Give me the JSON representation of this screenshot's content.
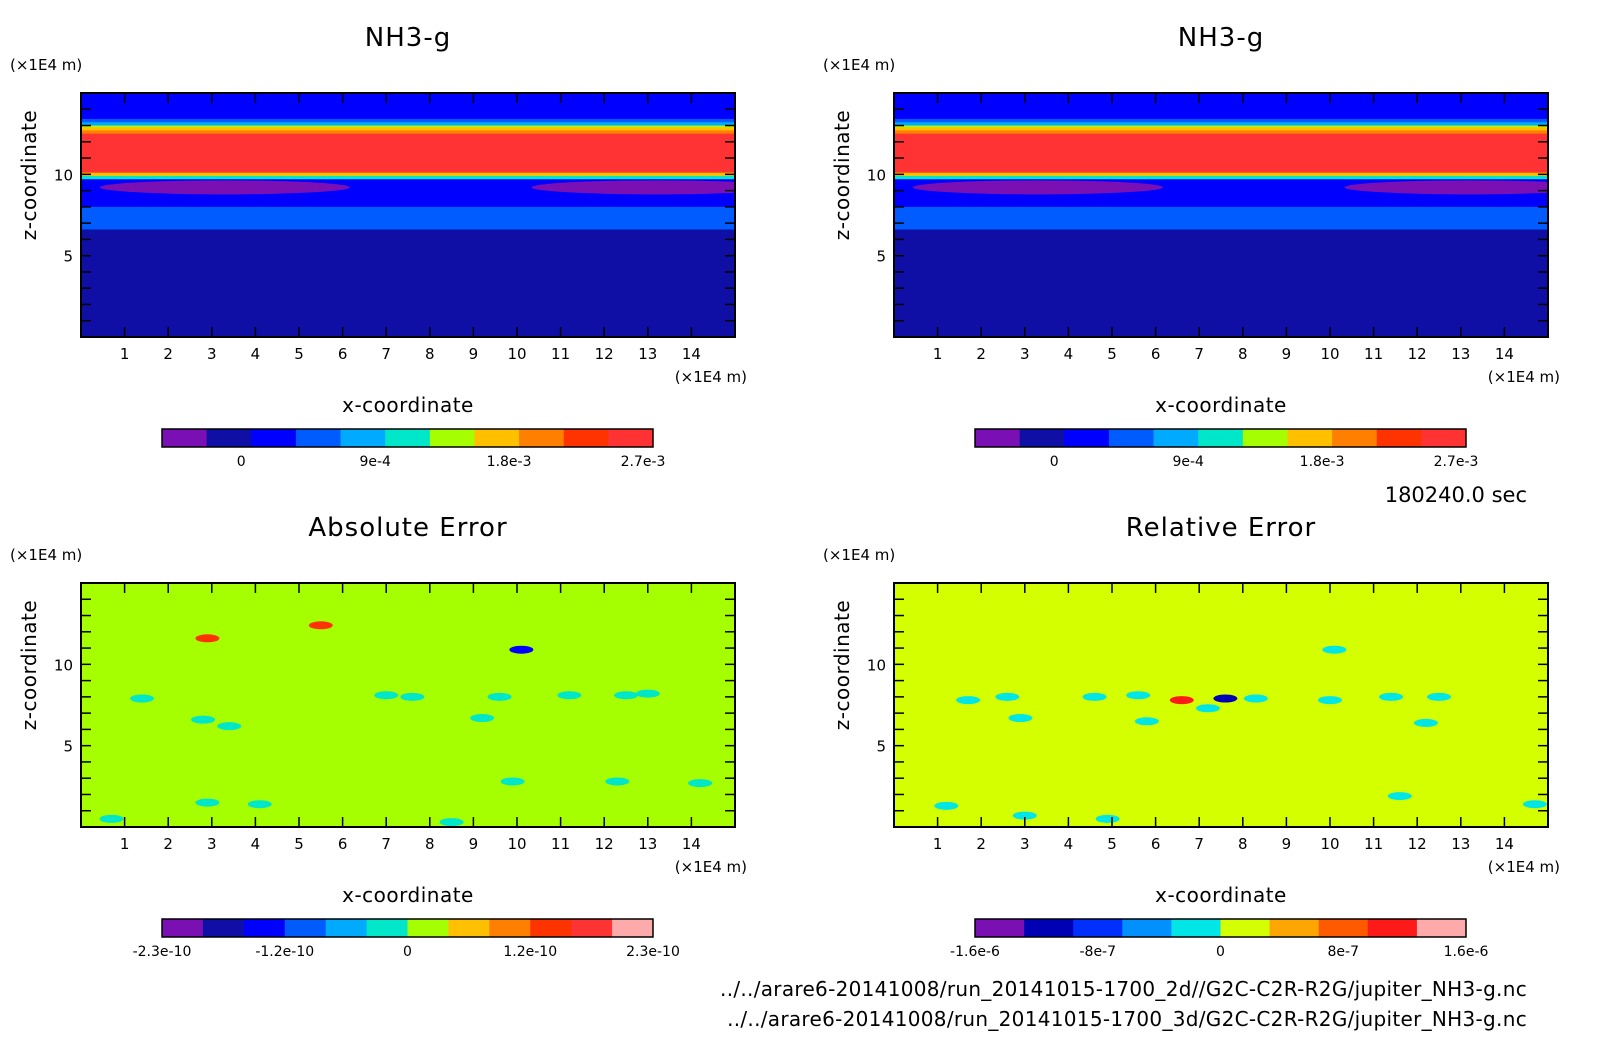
{
  "chart_data": [
    {
      "id": "nh3_2d",
      "type": "heatmap",
      "title": "NH3-g",
      "xlabel": "x-coordinate",
      "ylabel": "z-coordinate",
      "x_unit": "(×1E4 m)",
      "y_unit": "(×1E4 m)",
      "xlim": [
        0,
        15
      ],
      "ylim": [
        0,
        15
      ],
      "x_ticks": [
        "1",
        "2",
        "3",
        "4",
        "5",
        "6",
        "7",
        "8",
        "9",
        "10",
        "11",
        "12",
        "13",
        "14"
      ],
      "y_ticks": [
        "5",
        "10"
      ],
      "colorbar_ticks": [
        "0",
        "9e-4",
        "1.8e-3",
        "2.7e-3"
      ],
      "colorbar_colors": [
        "#7a0fb4",
        "#0f0fa5",
        "#0000ff",
        "#005cff",
        "#00aaff",
        "#00e6c8",
        "#a6ff00",
        "#ffc000",
        "#ff8000",
        "#ff3300",
        "#ff3333"
      ],
      "layers": [
        {
          "z_top": 15.0,
          "color": "#0000ff"
        },
        {
          "z_top": 13.4,
          "color": "#005cff"
        },
        {
          "z_top": 13.2,
          "color": "#00aaff"
        },
        {
          "z_top": 13.0,
          "color": "#a6ff00"
        },
        {
          "z_top": 12.9,
          "color": "#ffc000"
        },
        {
          "z_top": 12.7,
          "color": "#ff8000"
        },
        {
          "z_top": 12.5,
          "color": "#ff3333"
        },
        {
          "z_top": 10.1,
          "color": "#ffc000"
        },
        {
          "z_top": 9.9,
          "color": "#00e6c8"
        },
        {
          "z_top": 9.7,
          "color": "#0000ff"
        },
        {
          "z_top": 8.0,
          "color": "#005cff"
        },
        {
          "z_top": 6.6,
          "color": "#0f0fa5"
        }
      ]
    },
    {
      "id": "nh3_3d",
      "type": "heatmap",
      "title": "NH3-g",
      "xlabel": "x-coordinate",
      "ylabel": "z-coordinate",
      "x_unit": "(×1E4 m)",
      "y_unit": "(×1E4 m)",
      "xlim": [
        0,
        15
      ],
      "ylim": [
        0,
        15
      ],
      "x_ticks": [
        "1",
        "2",
        "3",
        "4",
        "5",
        "6",
        "7",
        "8",
        "9",
        "10",
        "11",
        "12",
        "13",
        "14"
      ],
      "y_ticks": [
        "5",
        "10"
      ],
      "colorbar_ticks": [
        "0",
        "9e-4",
        "1.8e-3",
        "2.7e-3"
      ],
      "colorbar_colors": [
        "#7a0fb4",
        "#0f0fa5",
        "#0000ff",
        "#005cff",
        "#00aaff",
        "#00e6c8",
        "#a6ff00",
        "#ffc000",
        "#ff8000",
        "#ff3300",
        "#ff3333"
      ],
      "layers": [
        {
          "z_top": 15.0,
          "color": "#0000ff"
        },
        {
          "z_top": 13.4,
          "color": "#005cff"
        },
        {
          "z_top": 13.2,
          "color": "#00aaff"
        },
        {
          "z_top": 13.0,
          "color": "#a6ff00"
        },
        {
          "z_top": 12.9,
          "color": "#ffc000"
        },
        {
          "z_top": 12.7,
          "color": "#ff8000"
        },
        {
          "z_top": 12.5,
          "color": "#ff3333"
        },
        {
          "z_top": 10.1,
          "color": "#ffc000"
        },
        {
          "z_top": 9.9,
          "color": "#00e6c8"
        },
        {
          "z_top": 9.7,
          "color": "#0000ff"
        },
        {
          "z_top": 8.0,
          "color": "#005cff"
        },
        {
          "z_top": 6.6,
          "color": "#0f0fa5"
        }
      ]
    },
    {
      "id": "abs_err",
      "type": "heatmap",
      "title": "Absolute Error",
      "xlabel": "x-coordinate",
      "ylabel": "z-coordinate",
      "x_unit": "(×1E4 m)",
      "y_unit": "(×1E4 m)",
      "xlim": [
        0,
        15
      ],
      "ylim": [
        0,
        15
      ],
      "x_ticks": [
        "1",
        "2",
        "3",
        "4",
        "5",
        "6",
        "7",
        "8",
        "9",
        "10",
        "11",
        "12",
        "13",
        "14"
      ],
      "y_ticks": [
        "5",
        "10"
      ],
      "colorbar_ticks": [
        "-2.3e-10",
        "-1.2e-10",
        "0",
        "1.2e-10",
        "2.3e-10"
      ],
      "colorbar_colors": [
        "#7a0fb4",
        "#0f0fa5",
        "#0000ff",
        "#005cff",
        "#00aaff",
        "#00e6c8",
        "#a6ff00",
        "#ffc000",
        "#ff8000",
        "#ff3300",
        "#ff3333",
        "#ffaaaa"
      ],
      "background": "#a6ff00",
      "blobs": [
        {
          "x": 1.4,
          "z": 7.9,
          "color": "#00e6c8"
        },
        {
          "x": 2.8,
          "z": 6.6,
          "color": "#00e6c8"
        },
        {
          "x": 3.4,
          "z": 6.2,
          "color": "#00e6c8"
        },
        {
          "x": 2.9,
          "z": 11.6,
          "color": "#ff3300"
        },
        {
          "x": 5.5,
          "z": 12.4,
          "color": "#ff3300"
        },
        {
          "x": 10.1,
          "z": 10.9,
          "color": "#0000ff"
        },
        {
          "x": 7.0,
          "z": 8.1,
          "color": "#00e6c8"
        },
        {
          "x": 7.6,
          "z": 8.0,
          "color": "#00e6c8"
        },
        {
          "x": 9.6,
          "z": 8.0,
          "color": "#00e6c8"
        },
        {
          "x": 11.2,
          "z": 8.1,
          "color": "#00e6c8"
        },
        {
          "x": 12.5,
          "z": 8.1,
          "color": "#00e6c8"
        },
        {
          "x": 13.0,
          "z": 8.2,
          "color": "#00e6c8"
        },
        {
          "x": 9.2,
          "z": 6.7,
          "color": "#00e6c8"
        },
        {
          "x": 9.9,
          "z": 2.8,
          "color": "#00e6c8"
        },
        {
          "x": 2.9,
          "z": 1.5,
          "color": "#00e6c8"
        },
        {
          "x": 4.1,
          "z": 1.4,
          "color": "#00e6c8"
        },
        {
          "x": 14.2,
          "z": 2.7,
          "color": "#00e6c8"
        },
        {
          "x": 0.7,
          "z": 0.5,
          "color": "#00e6c8"
        },
        {
          "x": 12.3,
          "z": 2.8,
          "color": "#00e6c8"
        },
        {
          "x": 8.5,
          "z": 0.3,
          "color": "#00e6c8"
        }
      ]
    },
    {
      "id": "rel_err",
      "type": "heatmap",
      "title": "Relative Error",
      "xlabel": "x-coordinate",
      "ylabel": "z-coordinate",
      "x_unit": "(×1E4 m)",
      "y_unit": "(×1E4 m)",
      "xlim": [
        0,
        15
      ],
      "ylim": [
        0,
        15
      ],
      "x_ticks": [
        "1",
        "2",
        "3",
        "4",
        "5",
        "6",
        "7",
        "8",
        "9",
        "10",
        "11",
        "12",
        "13",
        "14"
      ],
      "y_ticks": [
        "5",
        "10"
      ],
      "colorbar_ticks": [
        "-1.6e-6",
        "-8e-7",
        "0",
        "8e-7",
        "1.6e-6"
      ],
      "colorbar_colors": [
        "#7a0fb4",
        "#0000b4",
        "#0030ff",
        "#0090ff",
        "#00e6e6",
        "#d4ff00",
        "#ffa500",
        "#ff5a00",
        "#ff1a1a",
        "#ffaaaa"
      ],
      "background": "#d4ff00",
      "blobs": [
        {
          "x": 1.7,
          "z": 7.8,
          "color": "#00e6e6"
        },
        {
          "x": 2.6,
          "z": 8.0,
          "color": "#00e6e6"
        },
        {
          "x": 2.9,
          "z": 6.7,
          "color": "#00e6e6"
        },
        {
          "x": 4.6,
          "z": 8.0,
          "color": "#00e6e6"
        },
        {
          "x": 5.6,
          "z": 8.1,
          "color": "#00e6e6"
        },
        {
          "x": 6.6,
          "z": 7.8,
          "color": "#ff1a1a"
        },
        {
          "x": 7.6,
          "z": 7.9,
          "color": "#0000b4"
        },
        {
          "x": 7.2,
          "z": 7.3,
          "color": "#00e6e6"
        },
        {
          "x": 8.3,
          "z": 7.9,
          "color": "#00e6e6"
        },
        {
          "x": 10.0,
          "z": 7.8,
          "color": "#00e6e6"
        },
        {
          "x": 11.4,
          "z": 8.0,
          "color": "#00e6e6"
        },
        {
          "x": 12.5,
          "z": 8.0,
          "color": "#00e6e6"
        },
        {
          "x": 10.1,
          "z": 10.9,
          "color": "#00e6e6"
        },
        {
          "x": 5.8,
          "z": 6.5,
          "color": "#00e6e6"
        },
        {
          "x": 12.2,
          "z": 6.4,
          "color": "#00e6e6"
        },
        {
          "x": 3.0,
          "z": 0.7,
          "color": "#00e6e6"
        },
        {
          "x": 4.9,
          "z": 0.5,
          "color": "#00e6e6"
        },
        {
          "x": 1.2,
          "z": 1.3,
          "color": "#00e6e6"
        },
        {
          "x": 14.7,
          "z": 1.4,
          "color": "#00e6e6"
        },
        {
          "x": 11.6,
          "z": 1.9,
          "color": "#00e6e6"
        }
      ]
    }
  ],
  "figure": {
    "time_label": "180240.0 sec",
    "file_2d": "../../arare6-20141008/run_20141015-1700_2d//G2C-C2R-R2G/jupiter_NH3-g.nc",
    "file_3d": "../../arare6-20141008/run_20141015-1700_3d/G2C-C2R-R2G/jupiter_NH3-g.nc"
  }
}
